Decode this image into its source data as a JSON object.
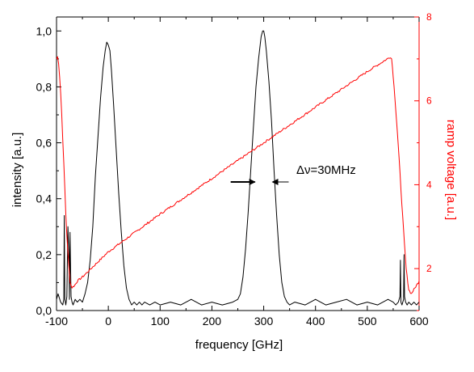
{
  "chart_data": {
    "type": "line",
    "title": "",
    "xlabel": "frequency [GHz]",
    "ylabel": "intensity [a.u.]",
    "y2label": "ramp voltage [a.u.]",
    "xlim": [
      -100,
      600
    ],
    "ylim": [
      0,
      1.05
    ],
    "y2lim": [
      1,
      8
    ],
    "x_ticks": [
      "-100",
      "0",
      "100",
      "200",
      "300",
      "400",
      "500",
      "600"
    ],
    "x_tick_values": [
      -100,
      0,
      100,
      200,
      300,
      400,
      500,
      600
    ],
    "y_ticks": [
      "0,0",
      "0,2",
      "0,4",
      "0,6",
      "0,8",
      "1,0"
    ],
    "y_tick_values": [
      0,
      0.2,
      0.4,
      0.6,
      0.8,
      1.0
    ],
    "y2_ticks": [
      "2",
      "4",
      "6",
      "8"
    ],
    "y2_tick_values": [
      2,
      4,
      6,
      8
    ],
    "annotation": "Δν=30MHz",
    "grid": false,
    "colors": {
      "intensity": "#000000",
      "ramp": "#ff0000",
      "axes": "#000000"
    },
    "series": [
      {
        "axis": "left",
        "color": "#000000",
        "x": [
          -100,
          -97,
          -92,
          -88,
          -86,
          -85,
          -84,
          -82,
          -80,
          -78,
          -76,
          -75,
          -74,
          -72,
          -70,
          -68,
          -66,
          -64,
          -60,
          -55,
          -50,
          -45,
          -40,
          -35,
          -30,
          -25,
          -20,
          -15,
          -10,
          -6,
          -3,
          0,
          3,
          6,
          10,
          15,
          20,
          25,
          30,
          35,
          40,
          45,
          50,
          55,
          60,
          65,
          70,
          80,
          90,
          100,
          120,
          140,
          160,
          180,
          200,
          220,
          240,
          250,
          255,
          260,
          265,
          270,
          275,
          280,
          285,
          290,
          295,
          298,
          300,
          302,
          305,
          310,
          315,
          320,
          325,
          330,
          335,
          340,
          345,
          350,
          360,
          380,
          400,
          420,
          440,
          460,
          480,
          500,
          520,
          540,
          550,
          555,
          560,
          563,
          564,
          565,
          567,
          570,
          571,
          572,
          574,
          577,
          580,
          585,
          590,
          595,
          600
        ],
        "y": [
          0.04,
          0.06,
          0.03,
          0.02,
          0.04,
          0.34,
          0.04,
          0.02,
          0.05,
          0.3,
          0.2,
          0.04,
          0.28,
          0.05,
          0.03,
          0.02,
          0.03,
          0.04,
          0.03,
          0.04,
          0.03,
          0.06,
          0.1,
          0.18,
          0.3,
          0.48,
          0.62,
          0.76,
          0.87,
          0.93,
          0.96,
          0.95,
          0.93,
          0.86,
          0.74,
          0.58,
          0.42,
          0.28,
          0.16,
          0.08,
          0.04,
          0.02,
          0.03,
          0.02,
          0.03,
          0.02,
          0.03,
          0.02,
          0.03,
          0.02,
          0.03,
          0.02,
          0.04,
          0.02,
          0.03,
          0.02,
          0.03,
          0.04,
          0.06,
          0.12,
          0.22,
          0.35,
          0.5,
          0.65,
          0.8,
          0.9,
          0.98,
          1.0,
          1.0,
          0.98,
          0.93,
          0.82,
          0.68,
          0.5,
          0.34,
          0.2,
          0.1,
          0.05,
          0.03,
          0.02,
          0.03,
          0.02,
          0.04,
          0.02,
          0.03,
          0.04,
          0.02,
          0.03,
          0.02,
          0.04,
          0.03,
          0.02,
          0.03,
          0.05,
          0.18,
          0.03,
          0.02,
          0.04,
          0.2,
          0.05,
          0.03,
          0.02,
          0.03,
          0.02,
          0.03,
          0.02,
          0.03
        ]
      },
      {
        "axis": "right",
        "color": "#ff0000",
        "x": [
          -100,
          -98,
          -96,
          -94,
          -92,
          -90,
          -88,
          -86,
          -84,
          -82,
          -80,
          -78,
          -76,
          -74,
          -72,
          -70,
          -65,
          -60,
          -50,
          0,
          100,
          200,
          300,
          400,
          500,
          545,
          547,
          550,
          555,
          560,
          565,
          570,
          575,
          580,
          585,
          590,
          595,
          600
        ],
        "y": [
          7.0,
          7.05,
          6.9,
          6.6,
          6.2,
          5.7,
          5.1,
          4.5,
          3.9,
          3.3,
          2.8,
          2.4,
          2.0,
          1.7,
          1.6,
          1.55,
          1.6,
          1.7,
          1.8,
          2.4,
          3.3,
          4.15,
          5.0,
          5.85,
          6.7,
          7.05,
          7.0,
          6.6,
          5.8,
          4.9,
          3.9,
          2.9,
          2.0,
          1.5,
          1.4,
          1.5,
          1.6,
          1.7
        ]
      }
    ]
  }
}
